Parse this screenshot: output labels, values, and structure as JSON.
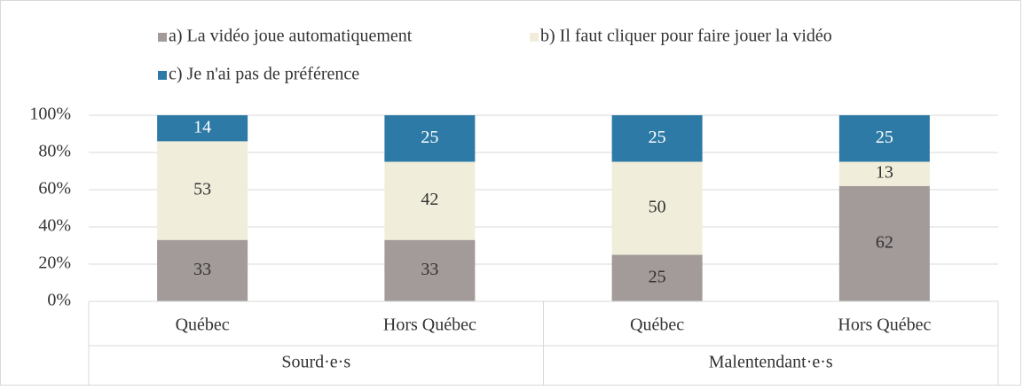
{
  "chart_data": {
    "type": "stacked_bar",
    "groups": [
      {
        "name": "Sourd·e·s",
        "categories": [
          "Québec",
          "Hors Québec"
        ]
      },
      {
        "name": "Malentendant·e·s",
        "categories": [
          "Québec",
          "Hors Québec"
        ]
      }
    ],
    "series": [
      {
        "name": "a) La vidéo joue automatiquement",
        "color": "#a39a9a",
        "values": [
          33,
          33,
          25,
          62
        ]
      },
      {
        "name": "b) Il faut cliquer pour faire jouer la vidéo",
        "color": "#f0eedb",
        "values": [
          53,
          42,
          50,
          13
        ]
      },
      {
        "name": "c) Je n'ai pas de préférence",
        "color": "#2e7aa6",
        "values": [
          14,
          25,
          25,
          25
        ]
      }
    ],
    "ylim": [
      0,
      100
    ],
    "yticks": [
      {
        "value": 0,
        "label": "0%"
      },
      {
        "value": 20,
        "label": "20%"
      },
      {
        "value": 40,
        "label": "40%"
      },
      {
        "value": 60,
        "label": "60%"
      },
      {
        "value": 80,
        "label": "80%"
      },
      {
        "value": 100,
        "label": "100%"
      }
    ],
    "grid": true,
    "legend": "top"
  }
}
